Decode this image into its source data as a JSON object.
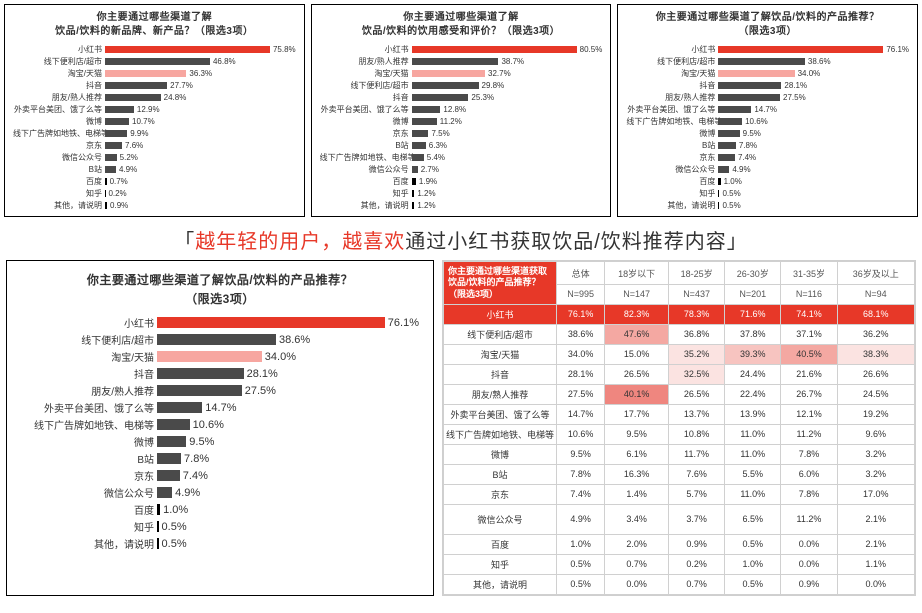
{
  "colors": {
    "bar_dark": "#4a4a4a",
    "bar_red": "#e73828",
    "bar_pink": "#f7a6a0",
    "bar_black": "#000000",
    "heat1": "#fbe3e1",
    "heat2": "#f7c4c0",
    "heat3": "#f4a8a2",
    "heat4": "#ef867f"
  },
  "topCharts": [
    {
      "title_l1": "你主要通过哪些渠道了解",
      "title_l2": "饮品/饮料的新品牌、新产品？（限选3项）",
      "label_width": 92,
      "scale": 85,
      "rows": [
        {
          "label": "小红书",
          "value": 75.8,
          "color": "bar_red"
        },
        {
          "label": "线下便利店/超市",
          "value": 46.8,
          "color": "bar_dark"
        },
        {
          "label": "淘宝/天猫",
          "value": 36.3,
          "color": "bar_pink"
        },
        {
          "label": "抖音",
          "value": 27.7,
          "color": "bar_dark"
        },
        {
          "label": "朋友/熟人推荐",
          "value": 24.8,
          "color": "bar_dark"
        },
        {
          "label": "外卖平台美团、饿了么等",
          "value": 12.9,
          "color": "bar_dark"
        },
        {
          "label": "微博",
          "value": 10.7,
          "color": "bar_dark"
        },
        {
          "label": "线下广告牌如地铁、电梯等",
          "value": 9.9,
          "color": "bar_dark"
        },
        {
          "label": "京东",
          "value": 7.6,
          "color": "bar_dark"
        },
        {
          "label": "微信公众号",
          "value": 5.2,
          "color": "bar_dark"
        },
        {
          "label": "B站",
          "value": 4.9,
          "color": "bar_dark"
        },
        {
          "label": "百度",
          "value": 0.7,
          "color": "bar_black"
        },
        {
          "label": "知乎",
          "value": 0.2,
          "color": "bar_black"
        },
        {
          "label": "其他，请说明",
          "value": 0.9,
          "color": "bar_black"
        }
      ]
    },
    {
      "title_l1": "你主要通过哪些渠道了解",
      "title_l2": "饮品/饮料的饮用感受和评价？（限选3项）",
      "label_width": 92,
      "scale": 85,
      "rows": [
        {
          "label": "小红书",
          "value": 80.5,
          "color": "bar_red"
        },
        {
          "label": "朋友/熟人推荐",
          "value": 38.7,
          "color": "bar_dark"
        },
        {
          "label": "淘宝/天猫",
          "value": 32.7,
          "color": "bar_pink"
        },
        {
          "label": "线下便利店/超市",
          "value": 29.8,
          "color": "bar_dark"
        },
        {
          "label": "抖音",
          "value": 25.3,
          "color": "bar_dark"
        },
        {
          "label": "外卖平台美团、饿了么等",
          "value": 12.8,
          "color": "bar_dark"
        },
        {
          "label": "微博",
          "value": 11.2,
          "color": "bar_dark"
        },
        {
          "label": "京东",
          "value": 7.5,
          "color": "bar_dark"
        },
        {
          "label": "B站",
          "value": 6.3,
          "color": "bar_dark"
        },
        {
          "label": "线下广告牌如地铁、电梯等",
          "value": 5.4,
          "color": "bar_dark"
        },
        {
          "label": "微信公众号",
          "value": 2.7,
          "color": "bar_dark"
        },
        {
          "label": "百度",
          "value": 1.9,
          "color": "bar_black"
        },
        {
          "label": "知乎",
          "value": 1.2,
          "color": "bar_black"
        },
        {
          "label": "其他，请说明",
          "value": 1.2,
          "color": "bar_black"
        }
      ]
    },
    {
      "title_l1": "你主要通过哪些渠道了解饮品/饮料的产品推荐？",
      "title_l2": "（限选3项）",
      "label_width": 92,
      "scale": 85,
      "rows": [
        {
          "label": "小红书",
          "value": 76.1,
          "color": "bar_red"
        },
        {
          "label": "线下便利店/超市",
          "value": 38.6,
          "color": "bar_dark"
        },
        {
          "label": "淘宝/天猫",
          "value": 34.0,
          "color": "bar_pink"
        },
        {
          "label": "抖音",
          "value": 28.1,
          "color": "bar_dark"
        },
        {
          "label": "朋友/熟人推荐",
          "value": 27.5,
          "color": "bar_dark"
        },
        {
          "label": "外卖平台美团、饿了么等",
          "value": 14.7,
          "color": "bar_dark"
        },
        {
          "label": "线下广告牌如地铁、电梯等",
          "value": 10.6,
          "color": "bar_dark"
        },
        {
          "label": "微博",
          "value": 9.5,
          "color": "bar_dark"
        },
        {
          "label": "B站",
          "value": 7.8,
          "color": "bar_dark"
        },
        {
          "label": "京东",
          "value": 7.4,
          "color": "bar_dark"
        },
        {
          "label": "微信公众号",
          "value": 4.9,
          "color": "bar_dark"
        },
        {
          "label": "百度",
          "value": 1.0,
          "color": "bar_black"
        },
        {
          "label": "知乎",
          "value": 0.5,
          "color": "bar_black"
        },
        {
          "label": "其他，请说明",
          "value": 0.5,
          "color": "bar_black"
        }
      ]
    }
  ],
  "headline": {
    "open": "「",
    "em": "越年轻的用户，越喜欢",
    "rest": "通过小红书获取饮品/饮料推荐内容」"
  },
  "bigChart": {
    "title_l1": "你主要通过哪些渠道了解饮品/饮料的产品推荐？",
    "title_l2": "（限选3项）",
    "label_width": 136,
    "scale": 85,
    "rows": [
      {
        "label": "小红书",
        "value": 76.1,
        "color": "bar_red"
      },
      {
        "label": "线下便利店/超市",
        "value": 38.6,
        "color": "bar_dark"
      },
      {
        "label": "淘宝/天猫",
        "value": 34.0,
        "color": "bar_pink"
      },
      {
        "label": "抖音",
        "value": 28.1,
        "color": "bar_dark"
      },
      {
        "label": "朋友/熟人推荐",
        "value": 27.5,
        "color": "bar_dark"
      },
      {
        "label": "外卖平台美团、饿了么等",
        "value": 14.7,
        "color": "bar_dark"
      },
      {
        "label": "线下广告牌如地铁、电梯等",
        "value": 10.6,
        "color": "bar_dark"
      },
      {
        "label": "微博",
        "value": 9.5,
        "color": "bar_dark"
      },
      {
        "label": "B站",
        "value": 7.8,
        "color": "bar_dark"
      },
      {
        "label": "京东",
        "value": 7.4,
        "color": "bar_dark"
      },
      {
        "label": "微信公众号",
        "value": 4.9,
        "color": "bar_dark"
      },
      {
        "label": "百度",
        "value": 1.0,
        "color": "bar_black"
      },
      {
        "label": "知乎",
        "value": 0.5,
        "color": "bar_black"
      },
      {
        "label": "其他，请说明",
        "value": 0.5,
        "color": "bar_black"
      }
    ]
  },
  "table": {
    "corner": "你主要通过哪些渠道获取饮品/饮料的产品推荐？（限选3项）",
    "cols": [
      "总体",
      "18岁以下",
      "18-25岁",
      "26-30岁",
      "31-35岁",
      "36岁及以上"
    ],
    "nrow": [
      "N=995",
      "N=147",
      "N=437",
      "N=201",
      "N=116",
      "N=94"
    ],
    "rows": [
      {
        "label": "小红书",
        "cells": [
          "76.1%",
          "82.3%",
          "78.3%",
          "71.6%",
          "74.1%",
          "68.1%"
        ],
        "highlight": true
      },
      {
        "label": "线下便利店/超市",
        "cells": [
          "38.6%",
          "47.6%",
          "36.8%",
          "37.8%",
          "37.1%",
          "36.2%"
        ],
        "heats": [
          0,
          3,
          0,
          0,
          0,
          0
        ]
      },
      {
        "label": "淘宝/天猫",
        "cells": [
          "34.0%",
          "15.0%",
          "35.2%",
          "39.3%",
          "40.5%",
          "38.3%"
        ],
        "heats": [
          0,
          0,
          1,
          2,
          3,
          1
        ]
      },
      {
        "label": "抖音",
        "cells": [
          "28.1%",
          "26.5%",
          "32.5%",
          "24.4%",
          "21.6%",
          "26.6%"
        ],
        "heats": [
          0,
          0,
          1,
          0,
          0,
          0
        ]
      },
      {
        "label": "朋友/熟人推荐",
        "cells": [
          "27.5%",
          "40.1%",
          "26.5%",
          "22.4%",
          "26.7%",
          "24.5%"
        ],
        "heats": [
          0,
          4,
          0,
          0,
          0,
          0
        ]
      },
      {
        "label": "外卖平台美团、饿了么等",
        "cells": [
          "14.7%",
          "17.7%",
          "13.7%",
          "13.9%",
          "12.1%",
          "19.2%"
        ]
      },
      {
        "label": "线下广告牌如地铁、电梯等",
        "cells": [
          "10.6%",
          "9.5%",
          "10.8%",
          "11.0%",
          "11.2%",
          "9.6%"
        ]
      },
      {
        "label": "微博",
        "cells": [
          "9.5%",
          "6.1%",
          "11.7%",
          "11.0%",
          "7.8%",
          "3.2%"
        ]
      },
      {
        "label": "B站",
        "cells": [
          "7.8%",
          "16.3%",
          "7.6%",
          "5.5%",
          "6.0%",
          "3.2%"
        ]
      },
      {
        "label": "京东",
        "cells": [
          "7.4%",
          "1.4%",
          "5.7%",
          "11.0%",
          "7.8%",
          "17.0%"
        ]
      },
      {
        "label": "微信公众号",
        "cells": [
          "4.9%",
          "3.4%",
          "3.7%",
          "6.5%",
          "11.2%",
          "2.1%"
        ],
        "tall": true
      },
      {
        "label": "百度",
        "cells": [
          "1.0%",
          "2.0%",
          "0.9%",
          "0.5%",
          "0.0%",
          "2.1%"
        ]
      },
      {
        "label": "知乎",
        "cells": [
          "0.5%",
          "0.7%",
          "0.2%",
          "1.0%",
          "0.0%",
          "1.1%"
        ]
      },
      {
        "label": "其他，请说明",
        "cells": [
          "0.5%",
          "0.0%",
          "0.7%",
          "0.5%",
          "0.9%",
          "0.0%"
        ]
      }
    ]
  }
}
